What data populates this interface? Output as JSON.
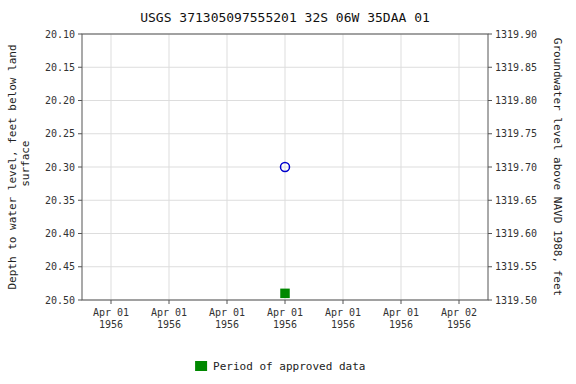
{
  "chart_data": {
    "type": "scatter",
    "title": "USGS 371305097555201 32S 06W 35DAA 01",
    "y_label": "Depth to water level, feet below land\n surface",
    "y2_label": "Groundwater level above NAVD 1988, feet",
    "categories": [
      "Apr 01\n1956",
      "Apr 01\n1956",
      "Apr 01\n1956",
      "Apr 01\n1956",
      "Apr 01\n1956",
      "Apr 01\n1956",
      "Apr 02\n1956"
    ],
    "series": [
      {
        "color": "#0000cc",
        "marker": "open-circle",
        "values": [
          null,
          null,
          null,
          20.3,
          null,
          null,
          null
        ]
      },
      {
        "name": "Period of approved data",
        "color": "#008800",
        "marker": "square",
        "values": [
          null,
          null,
          null,
          20.49,
          null,
          null,
          null
        ]
      }
    ],
    "ylim": [
      20.5,
      20.1
    ],
    "yticks": [
      {
        "value": 20.1,
        "label": "20.10"
      },
      20.15,
      {
        "value": 20.2,
        "label": "20.20"
      },
      20.25,
      {
        "value": 20.3,
        "label": "20.30"
      },
      20.35,
      {
        "value": 20.4,
        "label": "20.40"
      },
      20.45,
      {
        "value": 20.5,
        "label": "20.50"
      }
    ],
    "y2lim": [
      1319.5,
      1319.9
    ],
    "y2ticks": [
      {
        "value": 1319.9,
        "label": "1319.90"
      },
      1319.85,
      {
        "value": 1319.8,
        "label": "1319.80"
      },
      1319.75,
      {
        "value": 1319.7,
        "label": "1319.70"
      },
      1319.65,
      {
        "value": 1319.6,
        "label": "1319.60"
      },
      1319.55,
      {
        "value": 1319.5,
        "label": "1319.50"
      }
    ],
    "grid": true,
    "legend": "bottom"
  }
}
